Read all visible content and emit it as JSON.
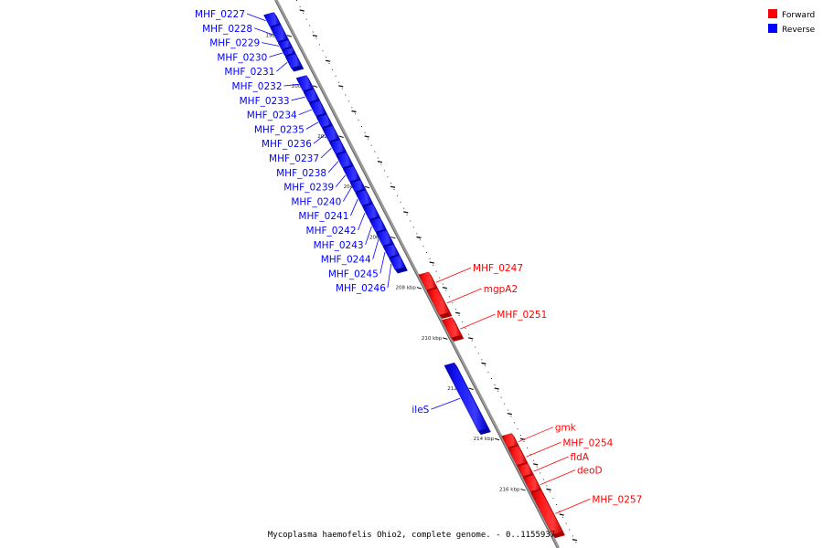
{
  "legend": [
    {
      "label": "Forward",
      "color": "#ff0000"
    },
    {
      "label": "Reverse",
      "color": "#0000ff"
    }
  ],
  "caption": "Mycoplasma haemofelis Ohio2, complete genome. - 0..1155937",
  "ticks": [
    {
      "label": "198 kbp",
      "value": 198
    },
    {
      "label": "200 kbp",
      "value": 200
    },
    {
      "label": "202 kbp",
      "value": 202
    },
    {
      "label": "204 kbp",
      "value": 204
    },
    {
      "label": "206 kbp",
      "value": 206
    },
    {
      "label": "208 kbp",
      "value": 208
    },
    {
      "label": "210 kbp",
      "value": 210
    },
    {
      "label": "212 kbp",
      "value": 212
    },
    {
      "label": "214 kbp",
      "value": 214
    },
    {
      "label": "216 kbp",
      "value": 216
    }
  ],
  "genes": [
    {
      "name": "MHF_0227",
      "strand": "reverse",
      "start": 197.2,
      "end": 197.65
    },
    {
      "name": "MHF_0228",
      "strand": "reverse",
      "start": 197.7,
      "end": 198.25
    },
    {
      "name": "MHF_0229",
      "strand": "reverse",
      "start": 198.3,
      "end": 198.55
    },
    {
      "name": "MHF_0230",
      "strand": "reverse",
      "start": 198.6,
      "end": 198.8
    },
    {
      "name": "MHF_0231",
      "strand": "reverse",
      "start": 198.85,
      "end": 199.3
    },
    {
      "name": "MHF_0232",
      "strand": "reverse",
      "start": 199.7,
      "end": 200.2
    },
    {
      "name": "MHF_0233",
      "strand": "reverse",
      "start": 200.25,
      "end": 200.65
    },
    {
      "name": "MHF_0234",
      "strand": "reverse",
      "start": 200.7,
      "end": 201.2
    },
    {
      "name": "MHF_0235",
      "strand": "reverse",
      "start": 201.25,
      "end": 201.65
    },
    {
      "name": "MHF_0236",
      "strand": "reverse",
      "start": 201.7,
      "end": 202.2
    },
    {
      "name": "MHF_0237",
      "strand": "reverse",
      "start": 202.25,
      "end": 202.7
    },
    {
      "name": "MHF_0238",
      "strand": "reverse",
      "start": 202.75,
      "end": 203.25
    },
    {
      "name": "MHF_0239",
      "strand": "reverse",
      "start": 203.3,
      "end": 203.8
    },
    {
      "name": "MHF_0240",
      "strand": "reverse",
      "start": 203.85,
      "end": 204.2
    },
    {
      "name": "MHF_0241",
      "strand": "reverse",
      "start": 204.25,
      "end": 204.75
    },
    {
      "name": "MHF_0242",
      "strand": "reverse",
      "start": 204.8,
      "end": 205.3
    },
    {
      "name": "MHF_0243",
      "strand": "reverse",
      "start": 205.35,
      "end": 205.8
    },
    {
      "name": "MHF_0244",
      "strand": "reverse",
      "start": 205.85,
      "end": 206.35
    },
    {
      "name": "MHF_0245",
      "strand": "reverse",
      "start": 206.4,
      "end": 206.8
    },
    {
      "name": "MHF_0246",
      "strand": "reverse",
      "start": 206.85,
      "end": 207.3
    },
    {
      "name": "MHF_0247",
      "strand": "forward",
      "start": 207.5,
      "end": 208.1
    },
    {
      "name": "mgpA2",
      "strand": "forward",
      "start": 208.15,
      "end": 209.1
    },
    {
      "name": "MHF_0251",
      "strand": "forward",
      "start": 209.3,
      "end": 210.0
    },
    {
      "name": "ileS",
      "strand": "reverse",
      "start": 211.1,
      "end": 213.7
    },
    {
      "name": "gmk",
      "strand": "forward",
      "start": 213.9,
      "end": 214.35
    },
    {
      "name": "MHF_0254",
      "strand": "forward",
      "start": 214.4,
      "end": 215.05
    },
    {
      "name": "fldA",
      "strand": "forward",
      "start": 215.1,
      "end": 215.5
    },
    {
      "name": "deoD",
      "strand": "forward",
      "start": 215.55,
      "end": 216.1
    },
    {
      "name": "MHF_0257",
      "strand": "forward",
      "start": 216.15,
      "end": 217.8
    }
  ]
}
